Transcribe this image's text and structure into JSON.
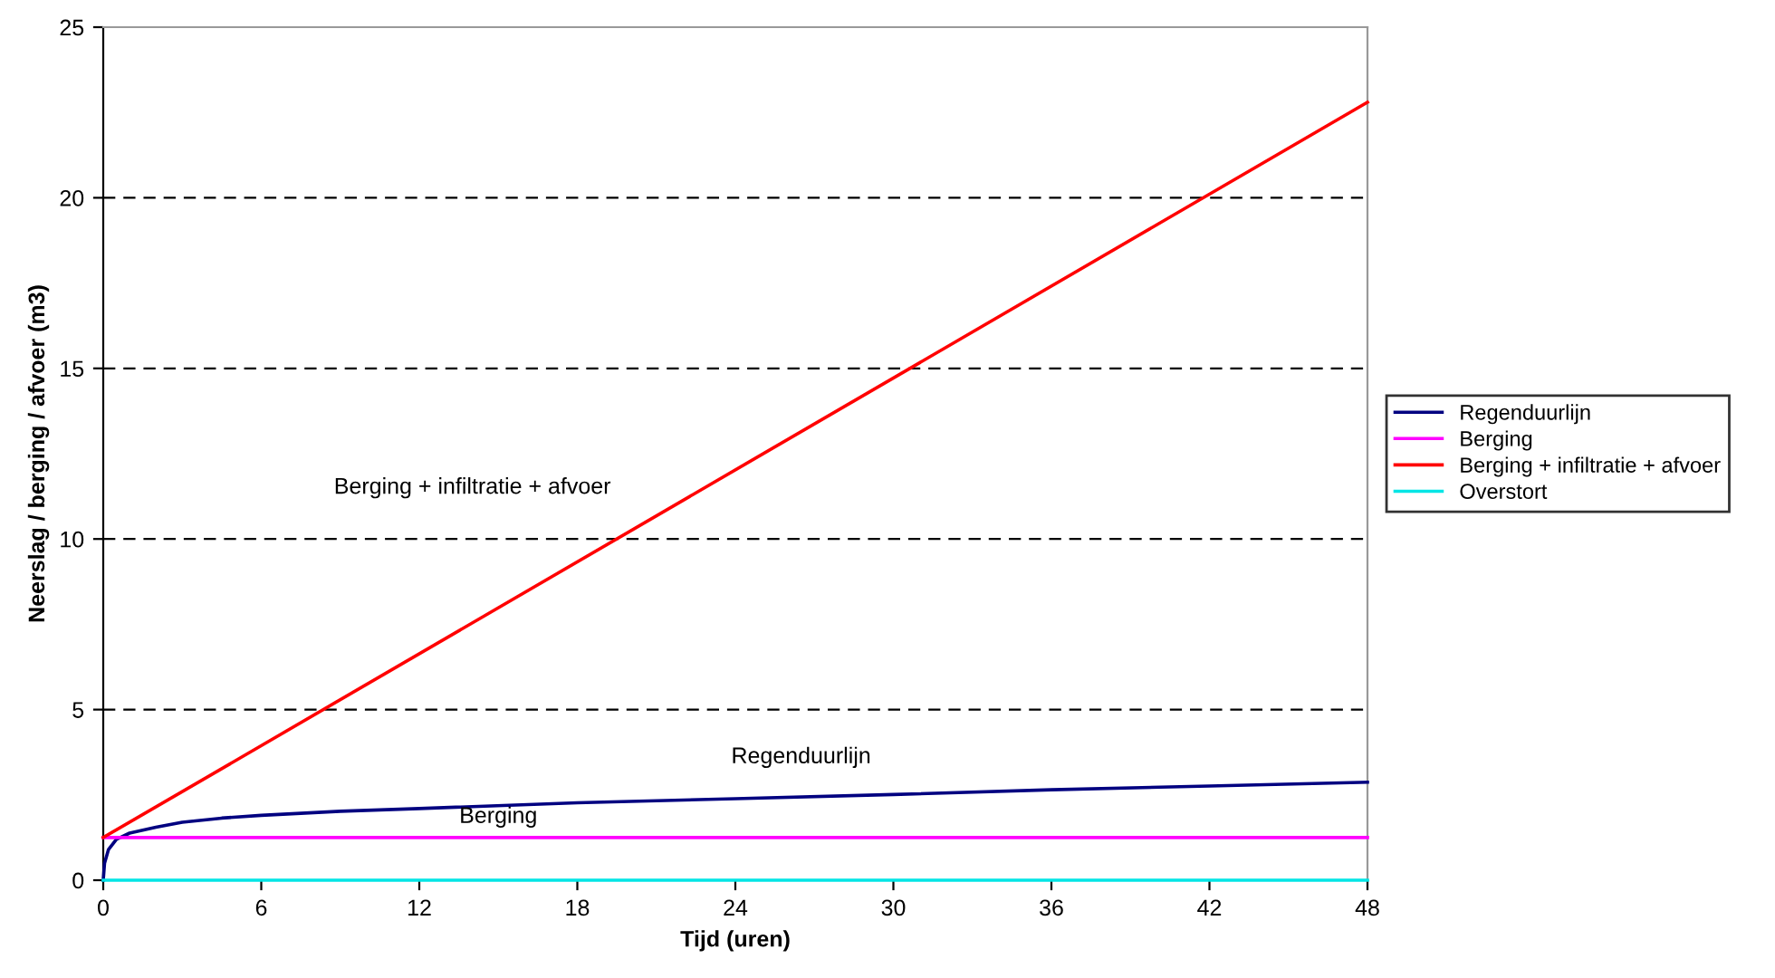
{
  "chart_data": {
    "type": "line",
    "xlabel": "Tijd (uren)",
    "ylabel": "Neerslag / berging / afvoer (m3)",
    "xlim": [
      0,
      48
    ],
    "xticks": [
      0,
      6,
      12,
      18,
      24,
      30,
      36,
      42,
      48
    ],
    "ylim": [
      0,
      25
    ],
    "yticks": [
      0,
      5,
      10,
      15,
      20,
      25
    ],
    "grid": "y",
    "legend": "right",
    "marker": "none",
    "line_style": "solid",
    "series": [
      {
        "name": "Regenduurlijn",
        "color": "#000080",
        "x": [
          0,
          0.05,
          0.2,
          0.5,
          1,
          2,
          3,
          4.5,
          6,
          9,
          12,
          18,
          24,
          30,
          36,
          42,
          48
        ],
        "values": [
          0,
          0.5,
          0.9,
          1.2,
          1.38,
          1.55,
          1.7,
          1.82,
          1.9,
          2.02,
          2.1,
          2.27,
          2.39,
          2.51,
          2.65,
          2.76,
          2.87
        ]
      },
      {
        "name": "Berging",
        "color": "#ff00ff",
        "x": [
          0,
          48
        ],
        "values": [
          1.25,
          1.25
        ]
      },
      {
        "name": "Berging + infiltratie + afvoer",
        "color": "#ff0000",
        "x": [
          0,
          48
        ],
        "values": [
          1.25,
          22.8
        ]
      },
      {
        "name": "Overstort",
        "color": "#00e5e5",
        "x": [
          0,
          48
        ],
        "values": [
          0,
          0
        ]
      }
    ],
    "annotations": [
      "Berging + infiltratie + afvoer",
      "Regenduurlijn",
      "Berging"
    ]
  }
}
